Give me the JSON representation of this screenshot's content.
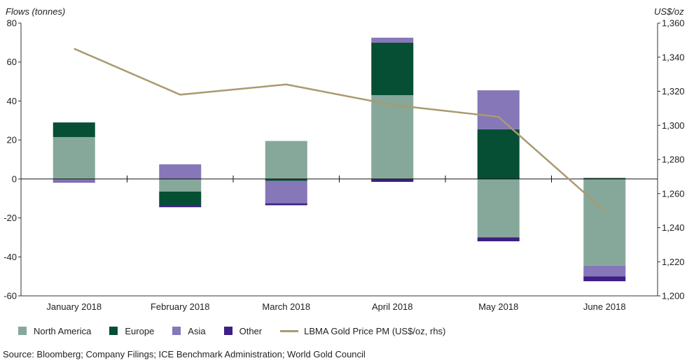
{
  "chart_data": {
    "type": "bar",
    "stacked": true,
    "secondary_line": true,
    "left_axis_label": "Flows (tonnes)",
    "right_axis_label": "US$/oz",
    "ylim": [
      -60,
      80
    ],
    "y_ticks": [
      80,
      60,
      40,
      20,
      0,
      -20,
      -40,
      -60
    ],
    "y_tick_labels": [
      "80",
      "60",
      "40",
      "20",
      "0",
      "-20",
      "-40",
      "-60"
    ],
    "y2lim": [
      1200,
      1360
    ],
    "y2_ticks": [
      1360,
      1340,
      1320,
      1300,
      1280,
      1260,
      1240,
      1220,
      1200
    ],
    "y2_tick_labels": [
      "1,360",
      "1,340",
      "1,320",
      "1,300",
      "1,280",
      "1,260",
      "1,240",
      "1,220",
      "1,200"
    ],
    "categories": [
      "January 2018",
      "February 2018",
      "March 2018",
      "April 2018",
      "May 2018",
      "June 2018"
    ],
    "series": [
      {
        "name": "North America",
        "color": "#86a89a",
        "values": [
          21.5,
          -6.5,
          19.5,
          43.0,
          -30.0,
          -44.5
        ]
      },
      {
        "name": "Europe",
        "color": "#064f35",
        "values": [
          7.5,
          -7.0,
          -1.0,
          27.0,
          25.5,
          0.5
        ]
      },
      {
        "name": "Asia",
        "color": "#8677b8",
        "values": [
          -1.5,
          7.5,
          -11.5,
          2.5,
          20.0,
          -5.5
        ]
      },
      {
        "name": "Other",
        "color": "#3e1f84",
        "values": [
          -0.3,
          -1.0,
          -1.0,
          -1.5,
          -2.0,
          -2.5
        ]
      }
    ],
    "line_series": {
      "name": "LBMA Gold Price PM (US$/oz, rhs)",
      "color": "#a99a70",
      "values": [
        1345,
        1318,
        1324,
        1312,
        1305,
        1250
      ]
    },
    "grid": false,
    "legend_position": "bottom"
  },
  "source": "Source: Bloomberg; Company Filings; ICE Benchmark Administration; World Gold Council"
}
